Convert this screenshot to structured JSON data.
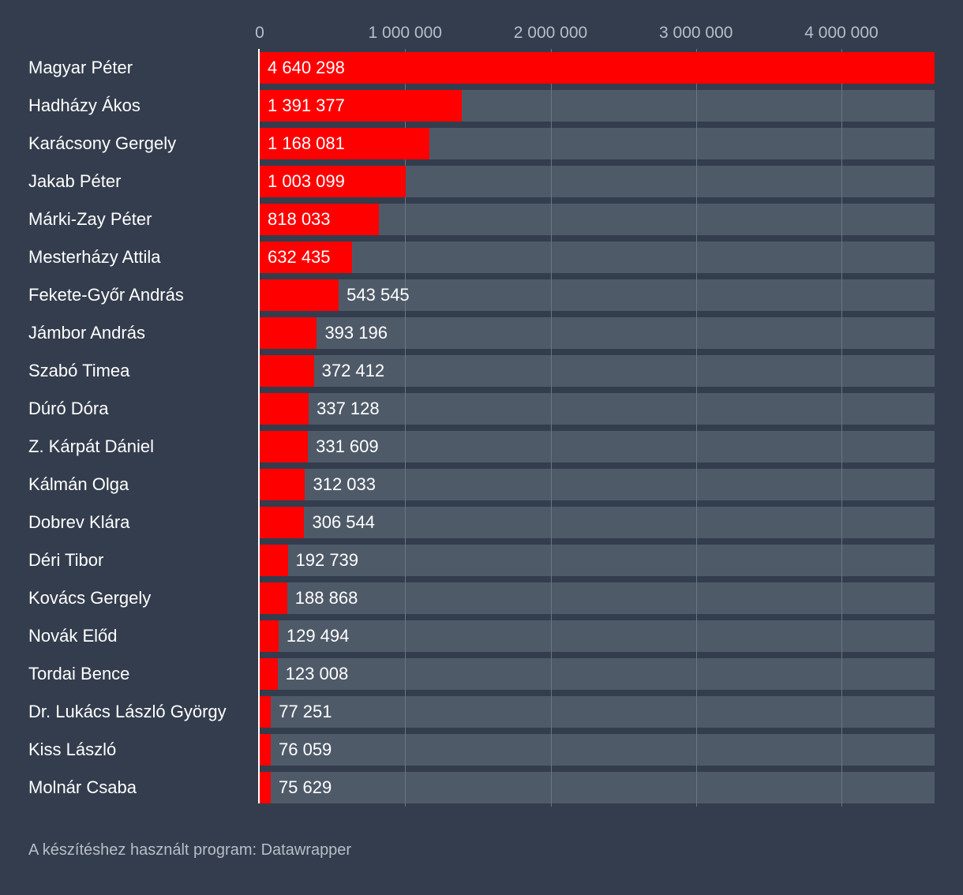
{
  "chart_data": {
    "type": "bar",
    "orientation": "horizontal",
    "x_ticks": [
      0,
      1000000,
      2000000,
      3000000,
      4000000
    ],
    "x_tick_labels": [
      "0",
      "1 000 000",
      "2 000 000",
      "3 000 000",
      "4 000 000"
    ],
    "xlim": [
      0,
      4640298
    ],
    "categories": [
      "Magyar Péter",
      "Hadházy Ákos",
      "Karácsony Gergely",
      "Jakab Péter",
      "Márki-Zay Péter",
      "Mesterházy Attila",
      "Fekete-Győr András",
      "Jámbor András",
      "Szabó Timea",
      "Dúró Dóra",
      "Z. Kárpát Dániel",
      "Kálmán Olga",
      "Dobrev Klára",
      "Déri Tibor",
      "Kovács Gergely",
      "Novák Előd",
      "Tordai Bence",
      "Dr. Lukács László György",
      "Kiss László",
      "Molnár Csaba"
    ],
    "values": [
      4640298,
      1391377,
      1168081,
      1003099,
      818033,
      632435,
      543545,
      393196,
      372412,
      337128,
      331609,
      312033,
      306544,
      192739,
      188868,
      129494,
      123008,
      77251,
      76059,
      75629
    ],
    "value_labels": [
      "4 640 298",
      "1 391 377",
      "1 168 081",
      "1 003 099",
      "818 033",
      "632 435",
      "543 545",
      "393 196",
      "372 412",
      "337 128",
      "331 609",
      "312 033",
      "306 544",
      "192 739",
      "188 868",
      "129 494",
      "123 008",
      "77 251",
      "76 059",
      "75 629"
    ],
    "bar_color": "#ff0000",
    "track_color": "#4f5a69",
    "background_color": "#333d4d",
    "grid": true
  },
  "footer": "A készítéshez használt program: Datawrapper"
}
